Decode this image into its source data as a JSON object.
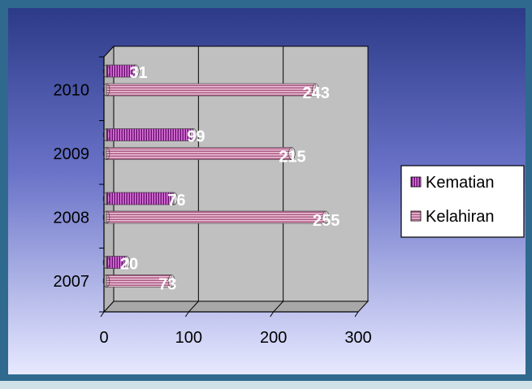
{
  "chart_data": {
    "type": "bar",
    "orientation": "horizontal",
    "categories": [
      "2007",
      "2008",
      "2009",
      "2010"
    ],
    "series": [
      {
        "name": "Kelahiran",
        "values": [
          73,
          255,
          215,
          243
        ],
        "color": "#e6a9c6"
      },
      {
        "name": "Kematian",
        "values": [
          20,
          76,
          99,
          31
        ],
        "color": "#8b1c8f"
      }
    ],
    "xlim": [
      0,
      300
    ],
    "x_ticks": [
      "0",
      "100",
      "200",
      "300"
    ],
    "grid": true,
    "legend_placement": "right",
    "background_colors": {
      "frame": "#2f6a8e",
      "gradient_top": "#2c3a88",
      "gradient_bottom": "#e7e9ff",
      "plot_wall": "#c0c0c0"
    }
  }
}
